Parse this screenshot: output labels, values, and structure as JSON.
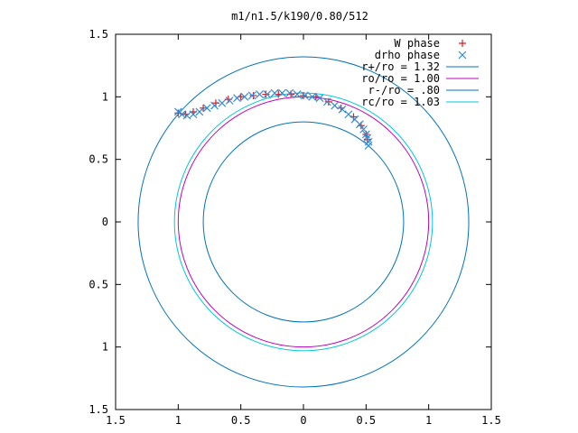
{
  "chart_data": {
    "type": "scatter",
    "title": "m1/n1.5/k190/0.80/512",
    "xlabel": "",
    "ylabel": "",
    "xlim": [
      -1.5,
      1.5
    ],
    "ylim": [
      -1.5,
      1.5
    ],
    "grid": false,
    "legend_position": "top-right",
    "x_ticks": [
      {
        "value": -1.5,
        "label": "1.5"
      },
      {
        "value": -1.0,
        "label": "1"
      },
      {
        "value": -0.5,
        "label": "0.5"
      },
      {
        "value": 0.0,
        "label": "0"
      },
      {
        "value": 0.5,
        "label": "0.5"
      },
      {
        "value": 1.0,
        "label": "1"
      },
      {
        "value": 1.5,
        "label": "1.5"
      }
    ],
    "y_ticks": [
      {
        "value": 1.5,
        "label": "1.5"
      },
      {
        "value": 1.0,
        "label": "1"
      },
      {
        "value": 0.5,
        "label": "0.5"
      },
      {
        "value": 0.0,
        "label": "0"
      },
      {
        "value": -0.5,
        "label": "0.5"
      },
      {
        "value": -1.0,
        "label": "1"
      },
      {
        "value": -1.5,
        "label": "1.5"
      }
    ],
    "circles": [
      {
        "name": "r+/ro = 1.32",
        "radius": 1.32,
        "color": "#0072bd"
      },
      {
        "name": "ro/ro = 1.00",
        "radius": 1.0,
        "color": "#c000c0"
      },
      {
        "name": "r-/ro = .80",
        "radius": 0.8,
        "color": "#0072bd"
      },
      {
        "name": "rc/ro = 1.03",
        "radius": 1.03,
        "color": "#00c8d8"
      }
    ],
    "series": [
      {
        "name": "W phase",
        "marker": "plus",
        "color": "#e41a1c",
        "points": [
          [
            -1.0,
            0.87
          ],
          [
            -0.94,
            0.86
          ],
          [
            -0.88,
            0.88
          ],
          [
            -0.8,
            0.91
          ],
          [
            -0.7,
            0.95
          ],
          [
            -0.6,
            0.98
          ],
          [
            -0.5,
            1.0
          ],
          [
            -0.4,
            1.01
          ],
          [
            -0.3,
            1.02
          ],
          [
            -0.2,
            1.02
          ],
          [
            -0.1,
            1.02
          ],
          [
            0.0,
            1.01
          ],
          [
            0.1,
            1.0
          ],
          [
            0.2,
            0.96
          ],
          [
            0.3,
            0.91
          ],
          [
            0.4,
            0.84
          ],
          [
            0.46,
            0.77
          ],
          [
            0.5,
            0.7
          ],
          [
            0.51,
            0.66
          ]
        ]
      },
      {
        "name": "drho phase",
        "marker": "cross",
        "color": "#2f8ed6",
        "points": [
          [
            -1.0,
            0.88
          ],
          [
            -0.97,
            0.86
          ],
          [
            -0.93,
            0.85
          ],
          [
            -0.88,
            0.86
          ],
          [
            -0.83,
            0.88
          ],
          [
            -0.77,
            0.91
          ],
          [
            -0.71,
            0.93
          ],
          [
            -0.65,
            0.95
          ],
          [
            -0.59,
            0.97
          ],
          [
            -0.53,
            0.99
          ],
          [
            -0.47,
            1.0
          ],
          [
            -0.41,
            1.01
          ],
          [
            -0.35,
            1.02
          ],
          [
            -0.29,
            1.02
          ],
          [
            -0.23,
            1.03
          ],
          [
            -0.17,
            1.03
          ],
          [
            -0.11,
            1.03
          ],
          [
            -0.05,
            1.02
          ],
          [
            0.01,
            1.01
          ],
          [
            0.07,
            1.0
          ],
          [
            0.13,
            0.99
          ],
          [
            0.19,
            0.96
          ],
          [
            0.25,
            0.93
          ],
          [
            0.31,
            0.9
          ],
          [
            0.36,
            0.86
          ],
          [
            0.41,
            0.82
          ],
          [
            0.45,
            0.78
          ],
          [
            0.48,
            0.74
          ],
          [
            0.5,
            0.7
          ],
          [
            0.51,
            0.67
          ],
          [
            0.52,
            0.64
          ],
          [
            0.52,
            0.61
          ]
        ]
      }
    ]
  }
}
